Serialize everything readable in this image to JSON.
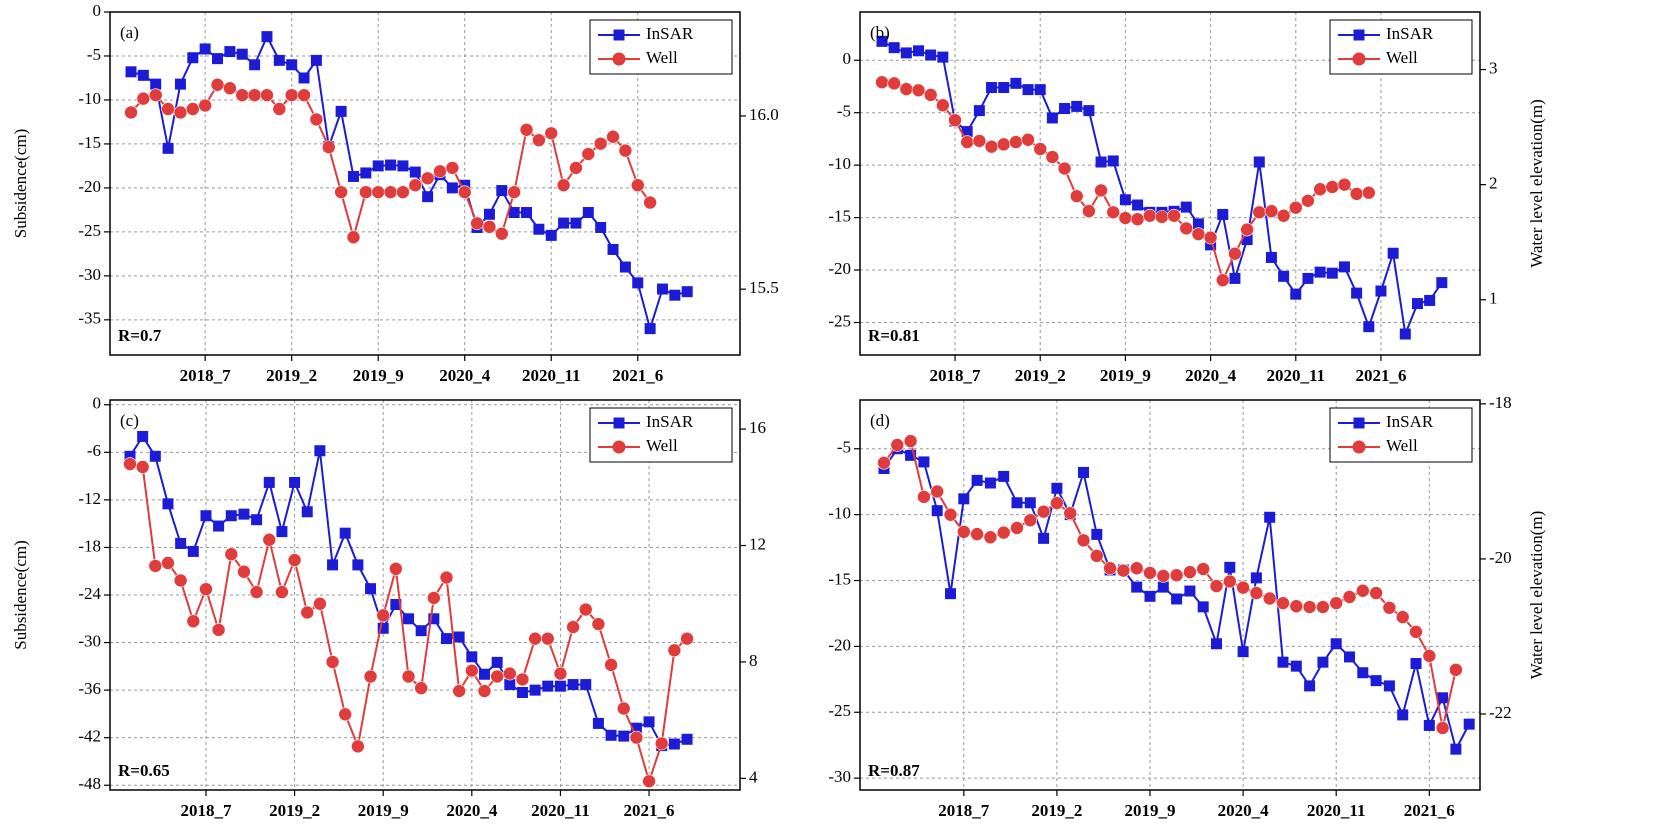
{
  "chart_data": [
    {
      "type": "line",
      "label": "(a)",
      "annotation": "R=0.7",
      "ylabel": "Subsidence(cm)",
      "categories": [
        null,
        null,
        null,
        null,
        null,
        null,
        "2018_7",
        null,
        null,
        null,
        null,
        null,
        null,
        "2019_2",
        null,
        null,
        null,
        null,
        null,
        null,
        "2019_9",
        null,
        null,
        null,
        null,
        null,
        null,
        "2020_4",
        null,
        null,
        null,
        null,
        null,
        null,
        "2020_11",
        null,
        null,
        null,
        null,
        null,
        null,
        "2021_6",
        null,
        null,
        null,
        null
      ],
      "ylim": [
        -39,
        0
      ],
      "yticks": [
        0,
        -5,
        -10,
        -15,
        -20,
        -25,
        -30,
        -35
      ],
      "y2lim": [
        15.31,
        16.3
      ],
      "y2ticks": [
        {
          "value": 16,
          "label": "16.0"
        },
        15.5
      ],
      "grid": true,
      "legend": "upper right",
      "series": [
        {
          "name": "InSAR",
          "color": "#1c1cd6",
          "marker": "square",
          "values": [
            -6.8,
            -7.2,
            -8.2,
            -15.5,
            -8.2,
            -5.2,
            -4.2,
            -5.3,
            -4.5,
            -4.8,
            -6,
            -2.8,
            -5.5,
            -6,
            -7.5,
            -5.5,
            -15.3,
            -11.3,
            -18.7,
            -18.3,
            -17.5,
            -17.4,
            -17.5,
            -18.2,
            -21,
            -18.5,
            -20,
            -19.7,
            -24.5,
            -23,
            -20.3,
            -22.8,
            -22.8,
            -24.7,
            -25.4,
            -24,
            -24,
            -22.8,
            -24.5,
            -27,
            -29,
            -30.8,
            -36,
            -31.5,
            -32.2,
            -31.8
          ]
        },
        {
          "name": "Well",
          "color": "#e03c3c",
          "marker": "circle",
          "axis": "y2",
          "values": [
            16.01,
            16.05,
            16.06,
            16.02,
            16.01,
            16.02,
            16.03,
            16.09,
            16.08,
            16.06,
            16.06,
            16.06,
            16.02,
            16.06,
            16.06,
            15.99,
            15.91,
            15.78,
            15.65,
            15.78,
            15.78,
            15.78,
            15.78,
            15.8,
            15.82,
            15.84,
            15.85,
            15.78,
            15.69,
            15.68,
            15.66,
            15.78,
            15.96,
            15.93,
            15.95,
            15.8,
            15.85,
            15.89,
            15.92,
            15.94,
            15.9,
            15.8,
            15.75,
            null,
            null,
            null
          ]
        }
      ]
    },
    {
      "type": "line",
      "label": "(b)",
      "annotation": "R=0.81",
      "y2label": "Water level elevation(m)",
      "categories": [
        null,
        null,
        null,
        null,
        null,
        null,
        "2018_7",
        null,
        null,
        null,
        null,
        null,
        null,
        "2019_2",
        null,
        null,
        null,
        null,
        null,
        null,
        "2019_9",
        null,
        null,
        null,
        null,
        null,
        null,
        "2020_4",
        null,
        null,
        null,
        null,
        null,
        null,
        "2020_11",
        null,
        null,
        null,
        null,
        null,
        null,
        "2021_6",
        null,
        null,
        null,
        null,
        null
      ],
      "ylim": [
        -28.1,
        4.6
      ],
      "yticks": [
        0,
        -5,
        -10,
        -15,
        -20,
        -25
      ],
      "y2lim": [
        0.52,
        3.5
      ],
      "y2ticks": [
        3,
        2,
        1
      ],
      "grid": true,
      "legend": "upper right",
      "series": [
        {
          "name": "InSAR",
          "color": "#1c1cd6",
          "marker": "square",
          "values": [
            1.8,
            1.2,
            0.7,
            0.9,
            0.5,
            0.3,
            -5.8,
            -6.8,
            -4.8,
            -2.6,
            -2.6,
            -2.2,
            -2.8,
            -2.8,
            -5.5,
            -4.6,
            -4.4,
            -4.8,
            -9.7,
            -9.6,
            -13.3,
            -13.8,
            -14.5,
            -14.5,
            -14.4,
            -14,
            -15.6,
            -17.6,
            -14.7,
            -20.8,
            -17.1,
            -9.7,
            -18.8,
            -20.6,
            -22.3,
            -20.8,
            -20.2,
            -20.3,
            -19.7,
            -22.2,
            -25.4,
            -22,
            -18.4,
            -26.1,
            -23.2,
            -22.9,
            -21.2
          ]
        },
        {
          "name": "Well",
          "color": "#e03c3c",
          "marker": "circle",
          "axis": "y2",
          "values": [
            2.89,
            2.88,
            2.83,
            2.82,
            2.78,
            2.69,
            2.56,
            2.37,
            2.38,
            2.33,
            2.35,
            2.37,
            2.39,
            2.31,
            2.24,
            2.14,
            1.9,
            1.77,
            1.95,
            1.76,
            1.71,
            1.7,
            1.73,
            1.72,
            1.73,
            1.62,
            1.57,
            1.54,
            1.17,
            1.4,
            1.61,
            1.76,
            1.77,
            1.73,
            1.8,
            1.86,
            1.96,
            1.98,
            2,
            1.92,
            1.93,
            null,
            null,
            null,
            null,
            null,
            null
          ]
        }
      ]
    },
    {
      "type": "line",
      "label": "(c)",
      "annotation": "R=0.65",
      "ylabel": "Subsidence(cm)",
      "categories": [
        null,
        null,
        null,
        null,
        null,
        null,
        "2018_7",
        null,
        null,
        null,
        null,
        null,
        null,
        "2019_2",
        null,
        null,
        null,
        null,
        null,
        null,
        "2019_9",
        null,
        null,
        null,
        null,
        null,
        null,
        "2020_4",
        null,
        null,
        null,
        null,
        null,
        null,
        "2020_11",
        null,
        null,
        null,
        null,
        null,
        null,
        "2021_6",
        null,
        null,
        null
      ],
      "ylim": [
        -48.6,
        0.6
      ],
      "yticks": [
        0,
        -6,
        -12,
        -18,
        -24,
        -30,
        -36,
        -42,
        -48
      ],
      "y2lim": [
        3.6,
        17
      ],
      "y2ticks": [
        16,
        12,
        8,
        4
      ],
      "grid": true,
      "legend": "upper right",
      "series": [
        {
          "name": "InSAR",
          "color": "#1c1cd6",
          "marker": "square",
          "values": [
            -6.5,
            -4,
            -6.5,
            -12.5,
            -17.5,
            -18.5,
            -14,
            -15.3,
            -14,
            -13.8,
            -14.5,
            -9.8,
            -16,
            -9.8,
            -13.5,
            -5.8,
            -20.2,
            -16.2,
            -20.2,
            -23.2,
            -28.2,
            -25.2,
            -27,
            -28.5,
            -27,
            -29.5,
            -29.3,
            -31.8,
            -34,
            -32.5,
            -35.3,
            -36.3,
            -36,
            -35.5,
            -35.5,
            -35.3,
            -35.3,
            -40.2,
            -41.7,
            -41.8,
            -40.8,
            -40,
            -43,
            -42.8,
            -42.2
          ]
        },
        {
          "name": "Well",
          "color": "#e03c3c",
          "marker": "circle",
          "axis": "y2",
          "values": [
            14.8,
            14.7,
            11.3,
            11.4,
            10.8,
            9.4,
            10.5,
            9.1,
            11.7,
            11.1,
            10.4,
            12.2,
            10.4,
            11.5,
            9.7,
            10,
            8,
            6.2,
            5.1,
            7.5,
            9.6,
            11.2,
            7.5,
            7.1,
            10.2,
            10.9,
            7,
            7.7,
            7,
            7.5,
            7.6,
            7.4,
            8.8,
            8.8,
            7.6,
            9.2,
            9.8,
            9.3,
            7.9,
            6.4,
            5.4,
            3.9,
            5.2,
            8.4,
            8.8
          ]
        }
      ]
    },
    {
      "type": "line",
      "label": "(d)",
      "annotation": "R=0.87",
      "y2label": "Water level elevation(m)",
      "categories": [
        null,
        null,
        null,
        null,
        null,
        null,
        "2018_7",
        null,
        null,
        null,
        null,
        null,
        null,
        "2019_2",
        null,
        null,
        null,
        null,
        null,
        null,
        "2019_9",
        null,
        null,
        null,
        null,
        null,
        null,
        "2020_4",
        null,
        null,
        null,
        null,
        null,
        null,
        "2020_11",
        null,
        null,
        null,
        null,
        null,
        null,
        "2021_6",
        null,
        null,
        null
      ],
      "ylim": [
        -30.9,
        -1.3
      ],
      "yticks": [
        -5,
        -10,
        -15,
        -20,
        -25,
        -30
      ],
      "y2lim": [
        -22.98,
        -17.95
      ],
      "y2ticks": [
        -18,
        -20,
        -22
      ],
      "grid": true,
      "legend": "upper right",
      "series": [
        {
          "name": "InSAR",
          "color": "#1c1cd6",
          "marker": "square",
          "values": [
            -6.5,
            -5,
            -5.5,
            -6,
            -9.7,
            -16,
            -8.8,
            -7.4,
            -7.6,
            -7.1,
            -9.1,
            -9.1,
            -11.8,
            -8,
            -10,
            -6.8,
            -11.5,
            -14.2,
            -14.2,
            -15.5,
            -16.2,
            -15.5,
            -16.4,
            -15.8,
            -17,
            -19.8,
            -14,
            -20.4,
            -14.8,
            -10.2,
            -21.2,
            -21.5,
            -23,
            -21.2,
            -19.8,
            -20.8,
            -22,
            -22.6,
            -23,
            -25.2,
            -21.3,
            -26,
            -23.9,
            -27.8,
            -25.9
          ]
        },
        {
          "name": "Well",
          "color": "#e03c3c",
          "marker": "circle",
          "axis": "y2",
          "values": [
            -18.76,
            -18.53,
            -18.48,
            -19.2,
            -19.13,
            -19.43,
            -19.65,
            -19.68,
            -19.72,
            -19.66,
            -19.6,
            -19.5,
            -19.39,
            -19.28,
            -19.41,
            -19.76,
            -19.96,
            -20.12,
            -20.15,
            -20.12,
            -20.18,
            -20.22,
            -20.21,
            -20.17,
            -20.13,
            -20.35,
            -20.29,
            -20.37,
            -20.44,
            -20.51,
            -20.57,
            -20.61,
            -20.62,
            -20.62,
            -20.57,
            -20.49,
            -20.41,
            -20.44,
            -20.63,
            -20.75,
            -20.94,
            -21.25,
            -22.18,
            -21.43,
            null
          ]
        }
      ]
    }
  ]
}
